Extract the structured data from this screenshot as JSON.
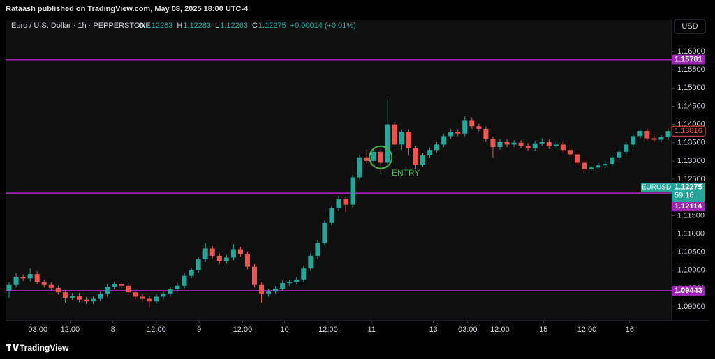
{
  "chart_data": {
    "type": "candlestick",
    "header": "Rataash published on TradingView.com, May 08, 2025 18:00 UTC-4",
    "symbol": "Euro / U.S. Dollar · 1h · PEPPERSTONE",
    "ohlc_legend": [
      {
        "key": "O",
        "value": "1.12263"
      },
      {
        "key": "H",
        "value": "1.12283"
      },
      {
        "key": "L",
        "value": "1.12263"
      },
      {
        "key": "C",
        "value": "1.12275"
      }
    ],
    "change": "+0.00014 (+0.01%)",
    "currency": "USD",
    "brand": "TradingView",
    "annotation": "ENTRY",
    "up_color": "#26a69a",
    "down_color": "#ef5350",
    "line_color": "#9c27b0",
    "grid": false,
    "ylim": [
      1.0862,
      1.1688
    ],
    "yticks": [
      {
        "value": 1.09,
        "label": "1.09000"
      },
      {
        "value": 1.095,
        "label": "1.09500"
      },
      {
        "value": 1.1,
        "label": "1.10000"
      },
      {
        "value": 1.105,
        "label": "1.10500"
      },
      {
        "value": 1.11,
        "label": "1.11000"
      },
      {
        "value": 1.115,
        "label": "1.11500"
      },
      {
        "value": 1.12,
        "label": "1.12000"
      },
      {
        "value": 1.125,
        "label": "1.12500"
      },
      {
        "value": 1.13,
        "label": "1.13000"
      },
      {
        "value": 1.135,
        "label": "1.13500"
      },
      {
        "value": 1.14,
        "label": "1.14000"
      },
      {
        "value": 1.145,
        "label": "1.14500"
      },
      {
        "value": 1.15,
        "label": "1.15000"
      },
      {
        "value": 1.155,
        "label": "1.15500"
      },
      {
        "value": 1.16,
        "label": "1.16000"
      }
    ],
    "xlim": [
      0,
      95
    ],
    "xticks": [
      {
        "value": 4.6,
        "label": "03:00"
      },
      {
        "value": 9.2,
        "label": "12:00"
      },
      {
        "value": 15.3,
        "label": "8"
      },
      {
        "value": 21.5,
        "label": "12:00"
      },
      {
        "value": 27.6,
        "label": "9"
      },
      {
        "value": 33.8,
        "label": "12:00"
      },
      {
        "value": 39.8,
        "label": "10"
      },
      {
        "value": 46.0,
        "label": "12:00"
      },
      {
        "value": 52.2,
        "label": "11"
      },
      {
        "value": 61.0,
        "label": "13"
      },
      {
        "value": 65.9,
        "label": "03:00"
      },
      {
        "value": 70.5,
        "label": "12:00"
      },
      {
        "value": 76.7,
        "label": "15"
      },
      {
        "value": 82.9,
        "label": "12:00"
      },
      {
        "value": 89.0,
        "label": "16"
      }
    ],
    "hlines": [
      1.15781,
      1.12114,
      1.09443
    ],
    "marker_price": 1.13816,
    "symbol_tag": "EURUSD",
    "last_price": 1.12275,
    "countdown": "59:16",
    "entry_index": 53,
    "open": [
      1.0945,
      1.096,
      1.0982,
      1.0978,
      1.099,
      1.0968,
      1.096,
      1.0952,
      1.094,
      1.0925,
      1.093,
      1.092,
      1.0915,
      1.0922,
      1.0935,
      1.0955,
      1.0962,
      1.0958,
      1.094,
      1.0928,
      1.0922,
      1.0915,
      1.0928,
      1.0935,
      1.0948,
      1.0958,
      1.0985,
      1.1,
      1.103,
      1.106,
      1.104,
      1.1025,
      1.1035,
      1.1058,
      1.1045,
      1.101,
      1.096,
      1.0935,
      1.0942,
      1.095,
      1.0965,
      1.0968,
      1.0975,
      1.1005,
      1.104,
      1.1075,
      1.113,
      1.117,
      1.1195,
      1.118,
      1.1255,
      1.131,
      1.13,
      1.1325,
      1.1295,
      1.14,
      1.1345,
      1.138,
      1.1335,
      1.129,
      1.1315,
      1.133,
      1.1345,
      1.1368,
      1.138,
      1.1375,
      1.1412,
      1.1395,
      1.1388,
      1.136,
      1.1338,
      1.1352,
      1.1345,
      1.135,
      1.1342,
      1.1335,
      1.1348,
      1.1352,
      1.134,
      1.1345,
      1.133,
      1.1318,
      1.1295,
      1.1278,
      1.1282,
      1.1288,
      1.1292,
      1.131,
      1.1325,
      1.1345,
      1.1368,
      1.1382,
      1.1362,
      1.1358,
      1.1365
    ],
    "high": [
      1.0967,
      1.0992,
      1.0989,
      1.1005,
      1.0997,
      1.0975,
      1.0967,
      1.0959,
      1.0947,
      1.0937,
      1.0937,
      1.0927,
      1.0929,
      1.0942,
      1.0962,
      1.0969,
      1.0969,
      1.0965,
      1.0947,
      1.0935,
      1.0929,
      1.0935,
      1.0942,
      1.0955,
      1.0965,
      1.0992,
      1.1007,
      1.1037,
      1.1075,
      1.1067,
      1.1047,
      1.1042,
      1.1072,
      1.1065,
      1.1052,
      1.1017,
      1.0967,
      1.0949,
      1.0957,
      1.0972,
      1.0975,
      1.0982,
      1.1012,
      1.1047,
      1.1082,
      1.1137,
      1.1177,
      1.1205,
      1.1202,
      1.1262,
      1.1317,
      1.133,
      1.1332,
      1.1332,
      1.147,
      1.1407,
      1.1387,
      1.1387,
      1.1342,
      1.1322,
      1.1337,
      1.1352,
      1.1375,
      1.1387,
      1.1387,
      1.1422,
      1.1419,
      1.1402,
      1.1395,
      1.1367,
      1.1359,
      1.1359,
      1.1357,
      1.1357,
      1.1349,
      1.1355,
      1.1362,
      1.1359,
      1.1352,
      1.1352,
      1.1337,
      1.1325,
      1.1302,
      1.1289,
      1.1295,
      1.1299,
      1.1317,
      1.1332,
      1.1352,
      1.1375,
      1.1389,
      1.1389,
      1.1369,
      1.1372,
      1.1389
    ],
    "low": [
      1.0925,
      1.0953,
      1.0971,
      1.097,
      1.0961,
      1.0953,
      1.0945,
      1.0933,
      1.0912,
      1.0918,
      1.0913,
      1.0908,
      1.0908,
      1.0915,
      1.0928,
      1.0948,
      1.0951,
      1.0933,
      1.0921,
      1.0915,
      1.0898,
      1.0908,
      1.0921,
      1.0928,
      1.0941,
      1.0951,
      1.0978,
      1.0993,
      1.1023,
      1.1033,
      1.1018,
      1.1018,
      1.1028,
      1.1038,
      1.1003,
      1.0953,
      1.0912,
      1.0928,
      1.0935,
      1.0943,
      1.0958,
      1.0961,
      1.0968,
      1.0998,
      1.1033,
      1.1068,
      1.1123,
      1.1163,
      1.116,
      1.1173,
      1.1248,
      1.1293,
      1.1293,
      1.1265,
      1.1288,
      1.1338,
      1.133,
      1.1315,
      1.1278,
      1.1283,
      1.1308,
      1.1323,
      1.1338,
      1.1361,
      1.1368,
      1.1368,
      1.1388,
      1.1381,
      1.1353,
      1.131,
      1.1331,
      1.1338,
      1.1338,
      1.1335,
      1.1328,
      1.1328,
      1.1341,
      1.1333,
      1.1333,
      1.1323,
      1.1311,
      1.1288,
      1.1271,
      1.1271,
      1.1275,
      1.1281,
      1.1285,
      1.1303,
      1.1318,
      1.1338,
      1.1361,
      1.1355,
      1.1351,
      1.1351,
      1.1358
    ],
    "close": [
      1.096,
      1.0982,
      1.0978,
      1.099,
      1.0968,
      1.096,
      1.0952,
      1.094,
      1.0925,
      1.093,
      1.092,
      1.0915,
      1.0922,
      1.0935,
      1.0955,
      1.0962,
      1.0958,
      1.094,
      1.0928,
      1.0922,
      1.0915,
      1.0928,
      1.0935,
      1.0948,
      1.0958,
      1.0985,
      1.1,
      1.103,
      1.106,
      1.104,
      1.1025,
      1.1035,
      1.1058,
      1.1045,
      1.101,
      1.096,
      1.0935,
      1.0942,
      1.095,
      1.0965,
      1.0968,
      1.0975,
      1.1005,
      1.104,
      1.1075,
      1.113,
      1.117,
      1.1195,
      1.118,
      1.1255,
      1.131,
      1.13,
      1.1325,
      1.1295,
      1.14,
      1.1345,
      1.138,
      1.1335,
      1.129,
      1.1315,
      1.133,
      1.1345,
      1.1368,
      1.138,
      1.1375,
      1.1412,
      1.1395,
      1.1388,
      1.136,
      1.1338,
      1.1352,
      1.1345,
      1.135,
      1.1342,
      1.1335,
      1.1348,
      1.1352,
      1.134,
      1.1345,
      1.133,
      1.1318,
      1.1295,
      1.1278,
      1.1282,
      1.1288,
      1.1292,
      1.131,
      1.1325,
      1.1345,
      1.1368,
      1.1382,
      1.1362,
      1.1358,
      1.1365,
      1.13816
    ]
  }
}
